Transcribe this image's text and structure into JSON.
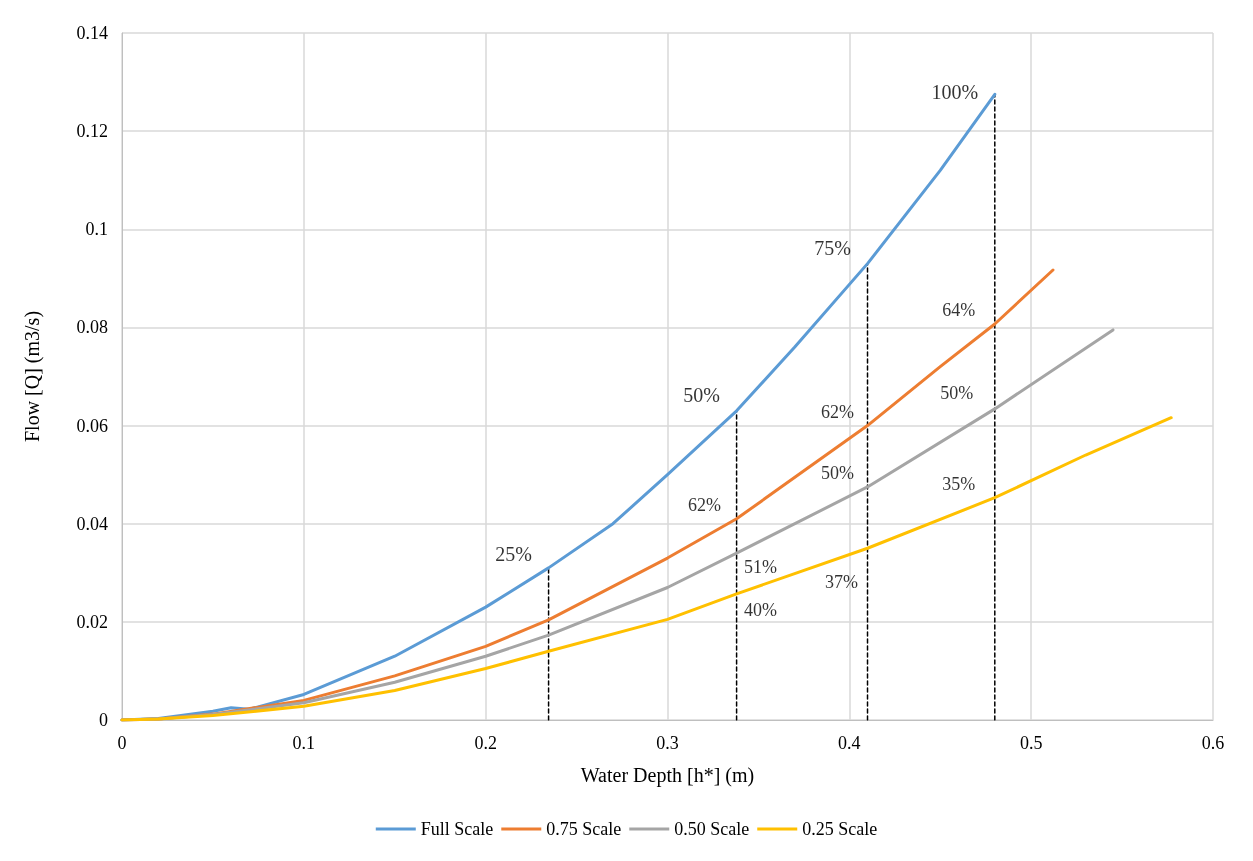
{
  "chart_data": {
    "type": "line",
    "xlabel": "Water Depth [h*] (m)",
    "ylabel": "Flow [Q] (m3/s)",
    "xlim": [
      0,
      0.6
    ],
    "xticks": [
      0,
      0.1,
      0.2,
      0.3,
      0.4,
      0.5,
      0.6
    ],
    "ylim": [
      0,
      0.14
    ],
    "yticks": [
      0,
      0.02,
      0.04,
      0.06,
      0.08,
      0.1,
      0.12,
      0.14
    ],
    "grid": true,
    "legend": "bottom",
    "marker": "none",
    "series": [
      {
        "name": "Full Scale",
        "color": "#5b9bd5",
        "x": [
          0,
          0.02,
          0.05,
          0.06,
          0.07,
          0.1,
          0.15,
          0.2,
          0.2346,
          0.27,
          0.3,
          0.338,
          0.37,
          0.41,
          0.45,
          0.48
        ],
        "values": [
          0,
          0.0003,
          0.0018,
          0.0025,
          0.0022,
          0.0052,
          0.013,
          0.023,
          0.031,
          0.04,
          0.05,
          0.063,
          0.076,
          0.093,
          0.112,
          0.1275
        ]
      },
      {
        "name": "0.75 Scale",
        "color": "#ed7d31",
        "x": [
          0,
          0.02,
          0.05,
          0.1,
          0.15,
          0.2,
          0.2346,
          0.3,
          0.338,
          0.41,
          0.45,
          0.48,
          0.512
        ],
        "values": [
          0,
          0.0002,
          0.0012,
          0.004,
          0.009,
          0.015,
          0.0204,
          0.033,
          0.041,
          0.06,
          0.072,
          0.0807,
          0.0917
        ]
      },
      {
        "name": "0.50 Scale",
        "color": "#a5a5a5",
        "x": [
          0,
          0.02,
          0.05,
          0.1,
          0.15,
          0.2,
          0.2346,
          0.3,
          0.338,
          0.41,
          0.48,
          0.545
        ],
        "values": [
          0,
          0.0002,
          0.0011,
          0.0035,
          0.0077,
          0.013,
          0.0173,
          0.027,
          0.034,
          0.0475,
          0.0634,
          0.0795
        ]
      },
      {
        "name": "0.25 Scale",
        "color": "#ffc000",
        "x": [
          0,
          0.02,
          0.05,
          0.1,
          0.15,
          0.2,
          0.2346,
          0.3,
          0.338,
          0.41,
          0.48,
          0.53,
          0.577
        ],
        "values": [
          0,
          0.0002,
          0.0009,
          0.0028,
          0.006,
          0.0105,
          0.014,
          0.0205,
          0.0257,
          0.035,
          0.0453,
          0.054,
          0.0616
        ]
      },
      {
        "color": "#000000",
        "line_style": "dashed",
        "x": [
          0.2346,
          0.2346
        ],
        "values": [
          0,
          0.031
        ]
      },
      {
        "color": "#000000",
        "line_style": "dashed",
        "x": [
          0.338,
          0.338
        ],
        "values": [
          0,
          0.063
        ]
      },
      {
        "color": "#000000",
        "line_style": "dashed",
        "x": [
          0.41,
          0.41
        ],
        "values": [
          0,
          0.093
        ]
      },
      {
        "color": "#000000",
        "line_style": "dashed",
        "x": [
          0.48,
          0.48
        ],
        "values": [
          0,
          0.1275
        ]
      }
    ],
    "annotations": [
      {
        "text": "25%",
        "x": 0.2346,
        "y": 0.031
      },
      {
        "text": "50%",
        "x": 0.338,
        "y": 0.063
      },
      {
        "text": "75%",
        "x": 0.41,
        "y": 0.093
      },
      {
        "text": "100%",
        "x": 0.48,
        "y": 0.1275
      },
      {
        "text": "62%",
        "x": 0.338,
        "y": 0.041
      },
      {
        "text": "51%",
        "x": 0.338,
        "y": 0.034
      },
      {
        "text": "40%",
        "x": 0.338,
        "y": 0.0257
      },
      {
        "text": "62%",
        "x": 0.41,
        "y": 0.06
      },
      {
        "text": "50%",
        "x": 0.41,
        "y": 0.0475
      },
      {
        "text": "37%",
        "x": 0.41,
        "y": 0.035
      },
      {
        "text": "64%",
        "x": 0.48,
        "y": 0.0807
      },
      {
        "text": "50%",
        "x": 0.48,
        "y": 0.0634
      },
      {
        "text": "35%",
        "x": 0.48,
        "y": 0.0453
      }
    ]
  }
}
